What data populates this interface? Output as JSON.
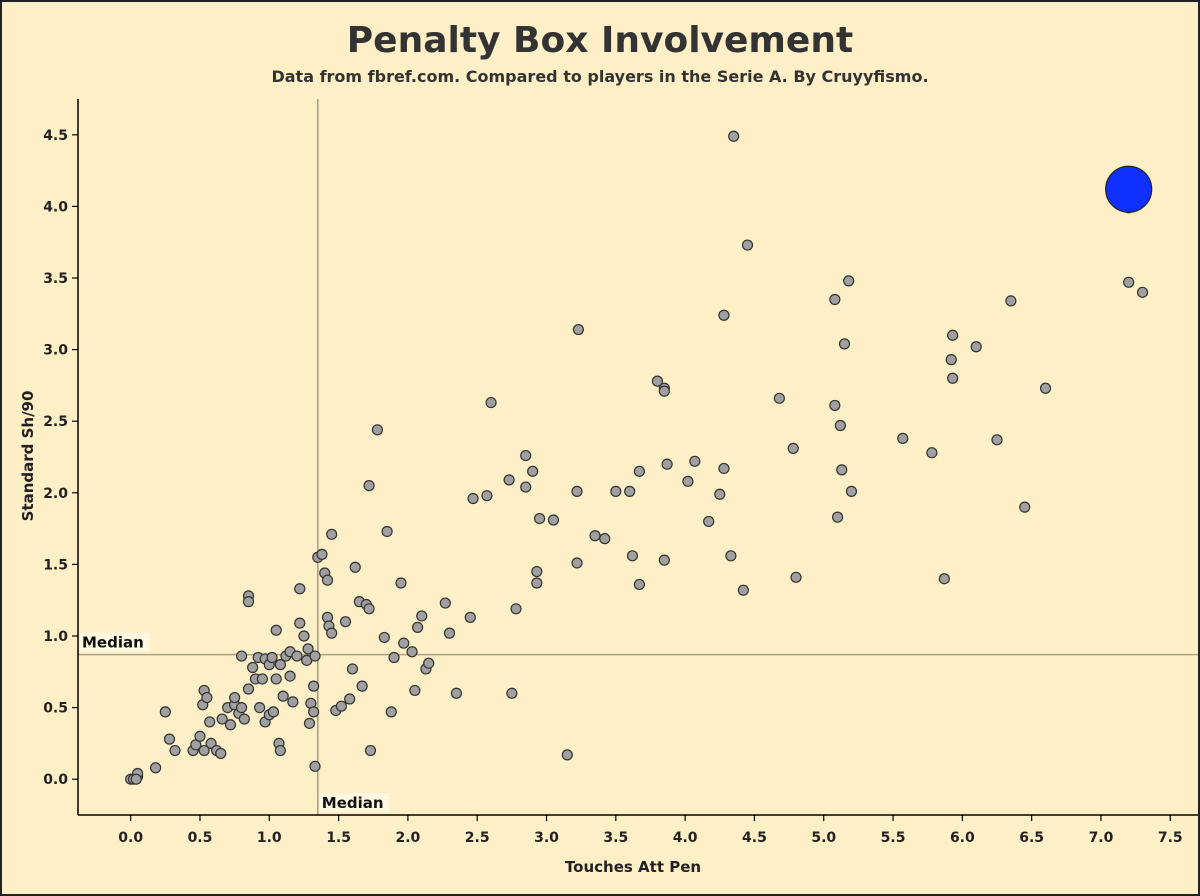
{
  "chart_data": {
    "type": "scatter",
    "title": "Penalty Box Involvement",
    "subtitle": "Data from fbref.com. Compared to players in the Serie A. By Cruyyfismo.",
    "xlabel": "Touches Att Pen",
    "ylabel": "Standard Sh/90",
    "xlim": [
      -0.38,
      7.7
    ],
    "ylim": [
      -0.25,
      4.75
    ],
    "x_ticks": [
      "0.0",
      "0.5",
      "1.0",
      "1.5",
      "2.0",
      "2.5",
      "3.0",
      "3.5",
      "4.0",
      "4.5",
      "5.0",
      "5.5",
      "6.0",
      "6.5",
      "7.0",
      "7.5"
    ],
    "y_ticks": [
      "0.0",
      "0.5",
      "1.0",
      "1.5",
      "2.0",
      "2.5",
      "3.0",
      "3.5",
      "4.0",
      "4.5"
    ],
    "median_x": 1.35,
    "median_y": 0.87,
    "median_x_label": "Median",
    "median_y_label": "Median",
    "colors": {
      "points": "#a0a0a0",
      "highlight": "#1030ff",
      "median_line": "#a8a288",
      "background": "#feefc6"
    },
    "highlight": {
      "x": 7.2,
      "y": 4.12
    },
    "points": [
      [
        0.0,
        0.0
      ],
      [
        0.02,
        0.0
      ],
      [
        0.05,
        0.02
      ],
      [
        0.05,
        0.04
      ],
      [
        0.04,
        0.0
      ],
      [
        0.18,
        0.08
      ],
      [
        0.25,
        0.47
      ],
      [
        0.28,
        0.28
      ],
      [
        0.32,
        0.2
      ],
      [
        0.45,
        0.2
      ],
      [
        0.47,
        0.24
      ],
      [
        0.5,
        0.3
      ],
      [
        0.53,
        0.62
      ],
      [
        0.52,
        0.52
      ],
      [
        0.55,
        0.57
      ],
      [
        0.53,
        0.2
      ],
      [
        0.58,
        0.25
      ],
      [
        0.57,
        0.4
      ],
      [
        0.62,
        0.2
      ],
      [
        0.65,
        0.18
      ],
      [
        0.66,
        0.42
      ],
      [
        0.7,
        0.5
      ],
      [
        0.72,
        0.38
      ],
      [
        0.75,
        0.52
      ],
      [
        0.75,
        0.57
      ],
      [
        0.78,
        0.46
      ],
      [
        0.8,
        0.5
      ],
      [
        0.82,
        0.42
      ],
      [
        0.85,
        0.63
      ],
      [
        0.8,
        0.86
      ],
      [
        0.85,
        1.28
      ],
      [
        0.85,
        1.24
      ],
      [
        0.88,
        0.78
      ],
      [
        0.9,
        0.7
      ],
      [
        0.92,
        0.85
      ],
      [
        0.93,
        0.5
      ],
      [
        0.95,
        0.7
      ],
      [
        0.97,
        0.4
      ],
      [
        0.97,
        0.84
      ],
      [
        1.0,
        0.45
      ],
      [
        1.0,
        0.8
      ],
      [
        1.02,
        0.85
      ],
      [
        1.03,
        0.47
      ],
      [
        1.05,
        0.7
      ],
      [
        1.05,
        1.04
      ],
      [
        1.07,
        0.25
      ],
      [
        1.08,
        0.2
      ],
      [
        1.08,
        0.8
      ],
      [
        1.1,
        0.58
      ],
      [
        1.12,
        0.86
      ],
      [
        1.15,
        0.89
      ],
      [
        1.15,
        0.72
      ],
      [
        1.17,
        0.54
      ],
      [
        1.2,
        0.86
      ],
      [
        1.22,
        1.09
      ],
      [
        1.22,
        1.33
      ],
      [
        1.25,
        1.0
      ],
      [
        1.27,
        0.83
      ],
      [
        1.28,
        0.91
      ],
      [
        1.29,
        0.39
      ],
      [
        1.3,
        0.53
      ],
      [
        1.32,
        0.65
      ],
      [
        1.32,
        0.47
      ],
      [
        1.33,
        0.86
      ],
      [
        1.33,
        0.09
      ],
      [
        1.35,
        1.55
      ],
      [
        1.38,
        1.57
      ],
      [
        1.4,
        1.44
      ],
      [
        1.42,
        1.39
      ],
      [
        1.42,
        1.13
      ],
      [
        1.43,
        1.07
      ],
      [
        1.45,
        1.02
      ],
      [
        1.45,
        1.71
      ],
      [
        1.48,
        0.48
      ],
      [
        1.52,
        0.51
      ],
      [
        1.55,
        1.1
      ],
      [
        1.58,
        0.56
      ],
      [
        1.6,
        0.77
      ],
      [
        1.62,
        1.48
      ],
      [
        1.65,
        1.24
      ],
      [
        1.67,
        0.65
      ],
      [
        1.7,
        1.22
      ],
      [
        1.72,
        2.05
      ],
      [
        1.72,
        1.19
      ],
      [
        1.73,
        0.2
      ],
      [
        1.78,
        2.44
      ],
      [
        1.83,
        0.99
      ],
      [
        1.85,
        1.73
      ],
      [
        1.88,
        0.47
      ],
      [
        1.9,
        0.85
      ],
      [
        1.95,
        1.37
      ],
      [
        1.97,
        0.95
      ],
      [
        2.03,
        0.89
      ],
      [
        2.05,
        0.62
      ],
      [
        2.07,
        1.06
      ],
      [
        2.1,
        1.14
      ],
      [
        2.13,
        0.77
      ],
      [
        2.15,
        0.81
      ],
      [
        2.27,
        1.23
      ],
      [
        2.3,
        1.02
      ],
      [
        2.35,
        0.6
      ],
      [
        2.45,
        1.13
      ],
      [
        2.47,
        1.96
      ],
      [
        2.57,
        1.98
      ],
      [
        2.6,
        2.63
      ],
      [
        2.73,
        2.09
      ],
      [
        2.75,
        0.6
      ],
      [
        2.78,
        1.19
      ],
      [
        2.85,
        2.04
      ],
      [
        2.85,
        2.26
      ],
      [
        2.9,
        2.15
      ],
      [
        2.93,
        1.37
      ],
      [
        2.93,
        1.45
      ],
      [
        2.95,
        1.82
      ],
      [
        3.05,
        1.81
      ],
      [
        3.15,
        0.17
      ],
      [
        3.22,
        1.51
      ],
      [
        3.22,
        2.01
      ],
      [
        3.23,
        3.14
      ],
      [
        3.35,
        1.7
      ],
      [
        3.42,
        1.68
      ],
      [
        3.5,
        2.01
      ],
      [
        3.6,
        2.01
      ],
      [
        3.62,
        1.56
      ],
      [
        3.67,
        1.36
      ],
      [
        3.67,
        2.15
      ],
      [
        3.8,
        2.78
      ],
      [
        3.85,
        2.73
      ],
      [
        3.85,
        2.71
      ],
      [
        3.85,
        1.53
      ],
      [
        3.87,
        2.2
      ],
      [
        4.02,
        2.08
      ],
      [
        4.07,
        2.22
      ],
      [
        4.17,
        1.8
      ],
      [
        4.25,
        1.99
      ],
      [
        4.28,
        2.17
      ],
      [
        4.28,
        3.24
      ],
      [
        4.33,
        1.56
      ],
      [
        4.35,
        4.49
      ],
      [
        4.42,
        1.32
      ],
      [
        4.45,
        3.73
      ],
      [
        4.68,
        2.66
      ],
      [
        4.78,
        2.31
      ],
      [
        4.8,
        1.41
      ],
      [
        5.08,
        3.35
      ],
      [
        5.08,
        2.61
      ],
      [
        5.1,
        1.83
      ],
      [
        5.12,
        2.47
      ],
      [
        5.13,
        2.16
      ],
      [
        5.15,
        3.04
      ],
      [
        5.18,
        3.48
      ],
      [
        5.2,
        2.01
      ],
      [
        5.57,
        2.38
      ],
      [
        5.78,
        2.28
      ],
      [
        5.87,
        1.4
      ],
      [
        5.92,
        2.93
      ],
      [
        5.93,
        2.8
      ],
      [
        5.93,
        3.1
      ],
      [
        6.1,
        3.02
      ],
      [
        6.25,
        2.37
      ],
      [
        6.35,
        3.34
      ],
      [
        6.45,
        1.9
      ],
      [
        6.6,
        2.73
      ],
      [
        7.2,
        3.47
      ],
      [
        7.3,
        3.4
      ],
      [
        7.2,
        3.99
      ]
    ]
  }
}
